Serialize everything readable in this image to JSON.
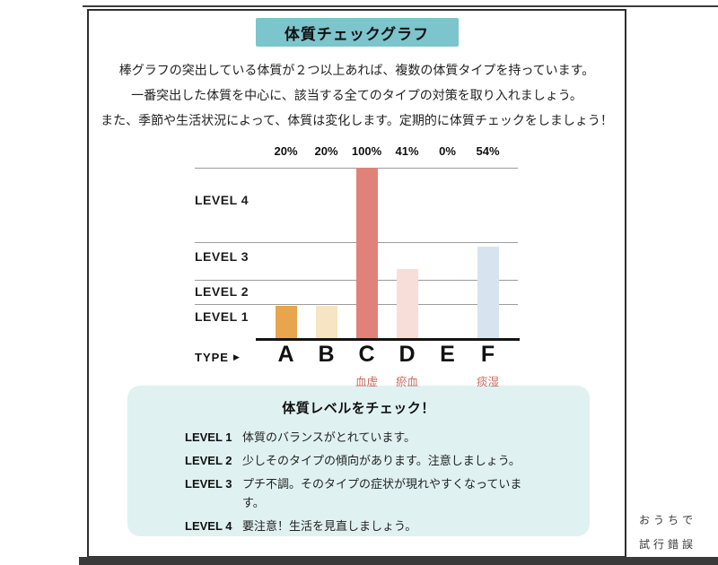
{
  "header": {
    "badge": "体質チェックグラフ"
  },
  "intro": {
    "lines": [
      "棒グラフの突出している体質が２つ以上あれば、複数の体質タイプを持っています。",
      "一番突出した体質を中心に、該当する全てのタイプの対策を取り入れましょう。",
      "また、季節や生活状況によって、体質は変化します。定期的に体質チェックをしましょう！"
    ]
  },
  "chart_data": {
    "type": "bar",
    "title": "体質チェックグラフ",
    "categories": [
      "A",
      "B",
      "C",
      "D",
      "E",
      "F"
    ],
    "values": [
      20,
      20,
      100,
      41,
      0,
      54
    ],
    "value_labels": [
      "20%",
      "20%",
      "100%",
      "41%",
      "0%",
      "54%"
    ],
    "bar_colors": [
      "#E8A54D",
      "#F7E4C2",
      "#E0827A",
      "#F8DED8",
      "#FFFFFF",
      "#D7E4EF"
    ],
    "sub_labels": [
      "",
      "",
      "血虚",
      "瘀血",
      "",
      "痰湿"
    ],
    "sub_label_color": "#C96A5F",
    "level_labels": [
      "LEVEL 1",
      "LEVEL 2",
      "LEVEL 3",
      "LEVEL 4"
    ],
    "axis_label_text": "TYPE",
    "axis_arrow": "▶",
    "xlabel": "TYPE",
    "ylabel": "",
    "ylim": [
      0,
      100
    ],
    "gridline_percents": [
      21,
      35,
      57,
      100
    ],
    "legend_position": "none",
    "grid": true
  },
  "legend_box": {
    "title": "体質レベルをチェック！",
    "items": [
      {
        "label": "LEVEL 1",
        "text": "体質のバランスがとれています。"
      },
      {
        "label": "LEVEL 2",
        "text": "少しそのタイプの傾向があります。注意しましょう。"
      },
      {
        "label": "LEVEL 3",
        "text": "プチ不調。そのタイプの症状が現れやすくなっています。"
      },
      {
        "label": "LEVEL 4",
        "text": "要注意！生活を見直しましょう。"
      }
    ]
  },
  "watermark": {
    "line1": "おうちで",
    "line2": "試行錯誤"
  },
  "colors": {
    "badge_bg": "#7CC5CC",
    "legend_bg": "#E0F1F1",
    "accent_red": "#C96A5F",
    "frame_border": "#2e2e2e",
    "text": "#222222"
  }
}
